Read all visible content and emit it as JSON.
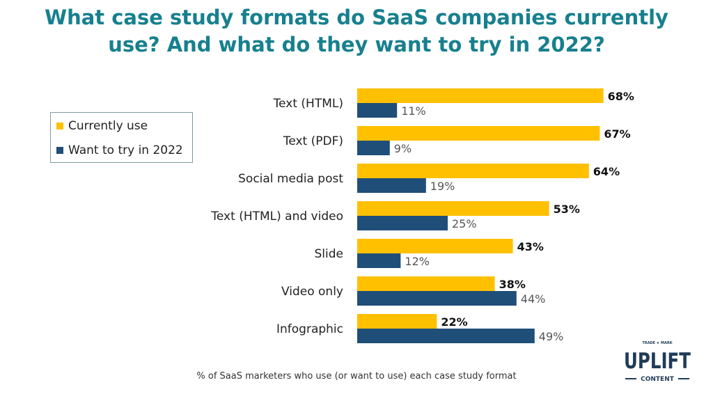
{
  "title": {
    "line1": "What case study formats do SaaS companies currently",
    "line2": "use? And what do they want to try in 2022?"
  },
  "colors": {
    "title": "#17808e",
    "currently_use": "#ffc000",
    "want_to_try": "#1f4e79",
    "value_label_dark": "#111111",
    "value_label_muted": "#555555",
    "category_label": "#222222"
  },
  "legend": {
    "placement": "left",
    "items": [
      {
        "label": "Currently use",
        "color": "#ffc000"
      },
      {
        "label": "Want to try in 2022",
        "color": "#1f4e79"
      }
    ]
  },
  "chart_data": {
    "type": "bar",
    "orientation": "horizontal",
    "categories": [
      "Text (HTML)",
      "Text (PDF)",
      "Social media post",
      "Text (HTML) and video",
      "Slide",
      "Video only",
      "Infographic"
    ],
    "series": [
      {
        "name": "Currently use",
        "values": [
          68,
          67,
          64,
          53,
          43,
          38,
          22
        ],
        "labels": [
          "68%",
          "67%",
          "64%",
          "53%",
          "43%",
          "38%",
          "22%"
        ]
      },
      {
        "name": "Want to try in 2022",
        "values": [
          11,
          9,
          19,
          25,
          12,
          44,
          49
        ],
        "labels": [
          "11%",
          "9%",
          "19%",
          "25%",
          "12%",
          "44%",
          "49%"
        ]
      }
    ],
    "unit": "%",
    "xlim": [
      0,
      100
    ],
    "grid": false,
    "legend_placement": "left",
    "note": "% of SaaS marketers who use (or want to use) each case study format"
  },
  "logo": {
    "top_text": "TRADE ★ MARK",
    "main_text": "UPLIFT",
    "bottom_text": "CONTENT"
  }
}
